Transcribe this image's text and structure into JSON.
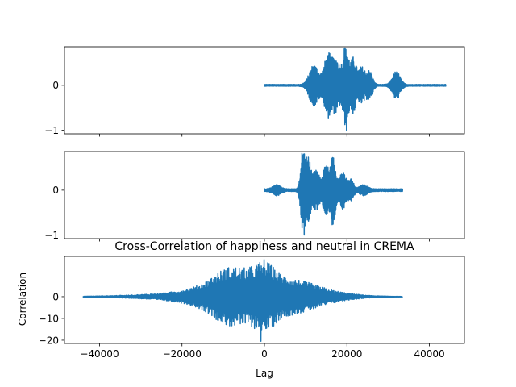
{
  "chart_data": [
    {
      "type": "line",
      "title": "",
      "xlabel": "",
      "ylabel": "",
      "xlim": [
        -48500,
        48500
      ],
      "ylim": [
        -1.08,
        0.86
      ],
      "yticks": [
        0,
        -1
      ],
      "shared_xticks": true,
      "signal": {
        "start": 0,
        "end": 44000,
        "noise": 0.02,
        "bursts": [
          {
            "center": 12000,
            "width": 1100,
            "amp": 0.45
          },
          {
            "center": 15500,
            "width": 1000,
            "amp": 0.7
          },
          {
            "center": 17500,
            "width": 700,
            "amp": 0.5
          },
          {
            "center": 19700,
            "width": 750,
            "amp": 0.9
          },
          {
            "center": 21600,
            "width": 600,
            "amp": 0.55
          },
          {
            "center": 23600,
            "width": 900,
            "amp": 0.4
          },
          {
            "center": 25600,
            "width": 650,
            "amp": 0.28
          },
          {
            "center": 32000,
            "width": 900,
            "amp": 0.3
          }
        ],
        "peak_max": 0.8,
        "peak_min": -1.0
      }
    },
    {
      "type": "line",
      "title": "",
      "xlabel": "",
      "ylabel": "",
      "xlim": [
        -48500,
        48500
      ],
      "ylim": [
        -1.08,
        0.86
      ],
      "yticks": [
        0,
        -1
      ],
      "shared_xticks": true,
      "signal": {
        "start": 0,
        "end": 33500,
        "noise": 0.03,
        "bursts": [
          {
            "center": 3000,
            "width": 900,
            "amp": 0.1
          },
          {
            "center": 9300,
            "width": 500,
            "amp": 0.85
          },
          {
            "center": 10600,
            "width": 600,
            "amp": 0.7
          },
          {
            "center": 12500,
            "width": 700,
            "amp": 0.45
          },
          {
            "center": 14800,
            "width": 750,
            "amp": 0.5
          },
          {
            "center": 16600,
            "width": 650,
            "amp": 0.72
          },
          {
            "center": 19000,
            "width": 750,
            "amp": 0.4
          },
          {
            "center": 21000,
            "width": 600,
            "amp": 0.22
          },
          {
            "center": 24000,
            "width": 900,
            "amp": 0.1
          }
        ],
        "peak_max": 0.8,
        "peak_min": -1.0
      }
    },
    {
      "type": "line",
      "title": "Cross-Correlation of happiness and neutral in CREMA",
      "xlabel": "Lag",
      "ylabel": "Correlation",
      "xlim": [
        -48500,
        48500
      ],
      "ylim": [
        -21.5,
        18.5
      ],
      "yticks": [
        0,
        -10,
        -20
      ],
      "xticks": [
        -40000,
        -20000,
        0,
        20000,
        40000
      ],
      "xtick_labels": [
        "−40000",
        "−20000",
        "0",
        "20000",
        "40000"
      ],
      "signal": {
        "start": -44000,
        "end": 33500,
        "noise": 0.1,
        "bursts": [
          {
            "center": -5000,
            "width": 9000,
            "amp": 9.0
          },
          {
            "center": -8500,
            "width": 3500,
            "amp": 5.0
          },
          {
            "center": 0,
            "width": 2500,
            "amp": 7.0
          },
          {
            "center": 8000,
            "width": 5000,
            "amp": 4.0
          },
          {
            "center": 16000,
            "width": 6000,
            "amp": 1.5
          },
          {
            "center": -25000,
            "width": 9000,
            "amp": 0.8
          }
        ],
        "peak_max": 17.0,
        "peak_min": -20.5
      }
    }
  ]
}
